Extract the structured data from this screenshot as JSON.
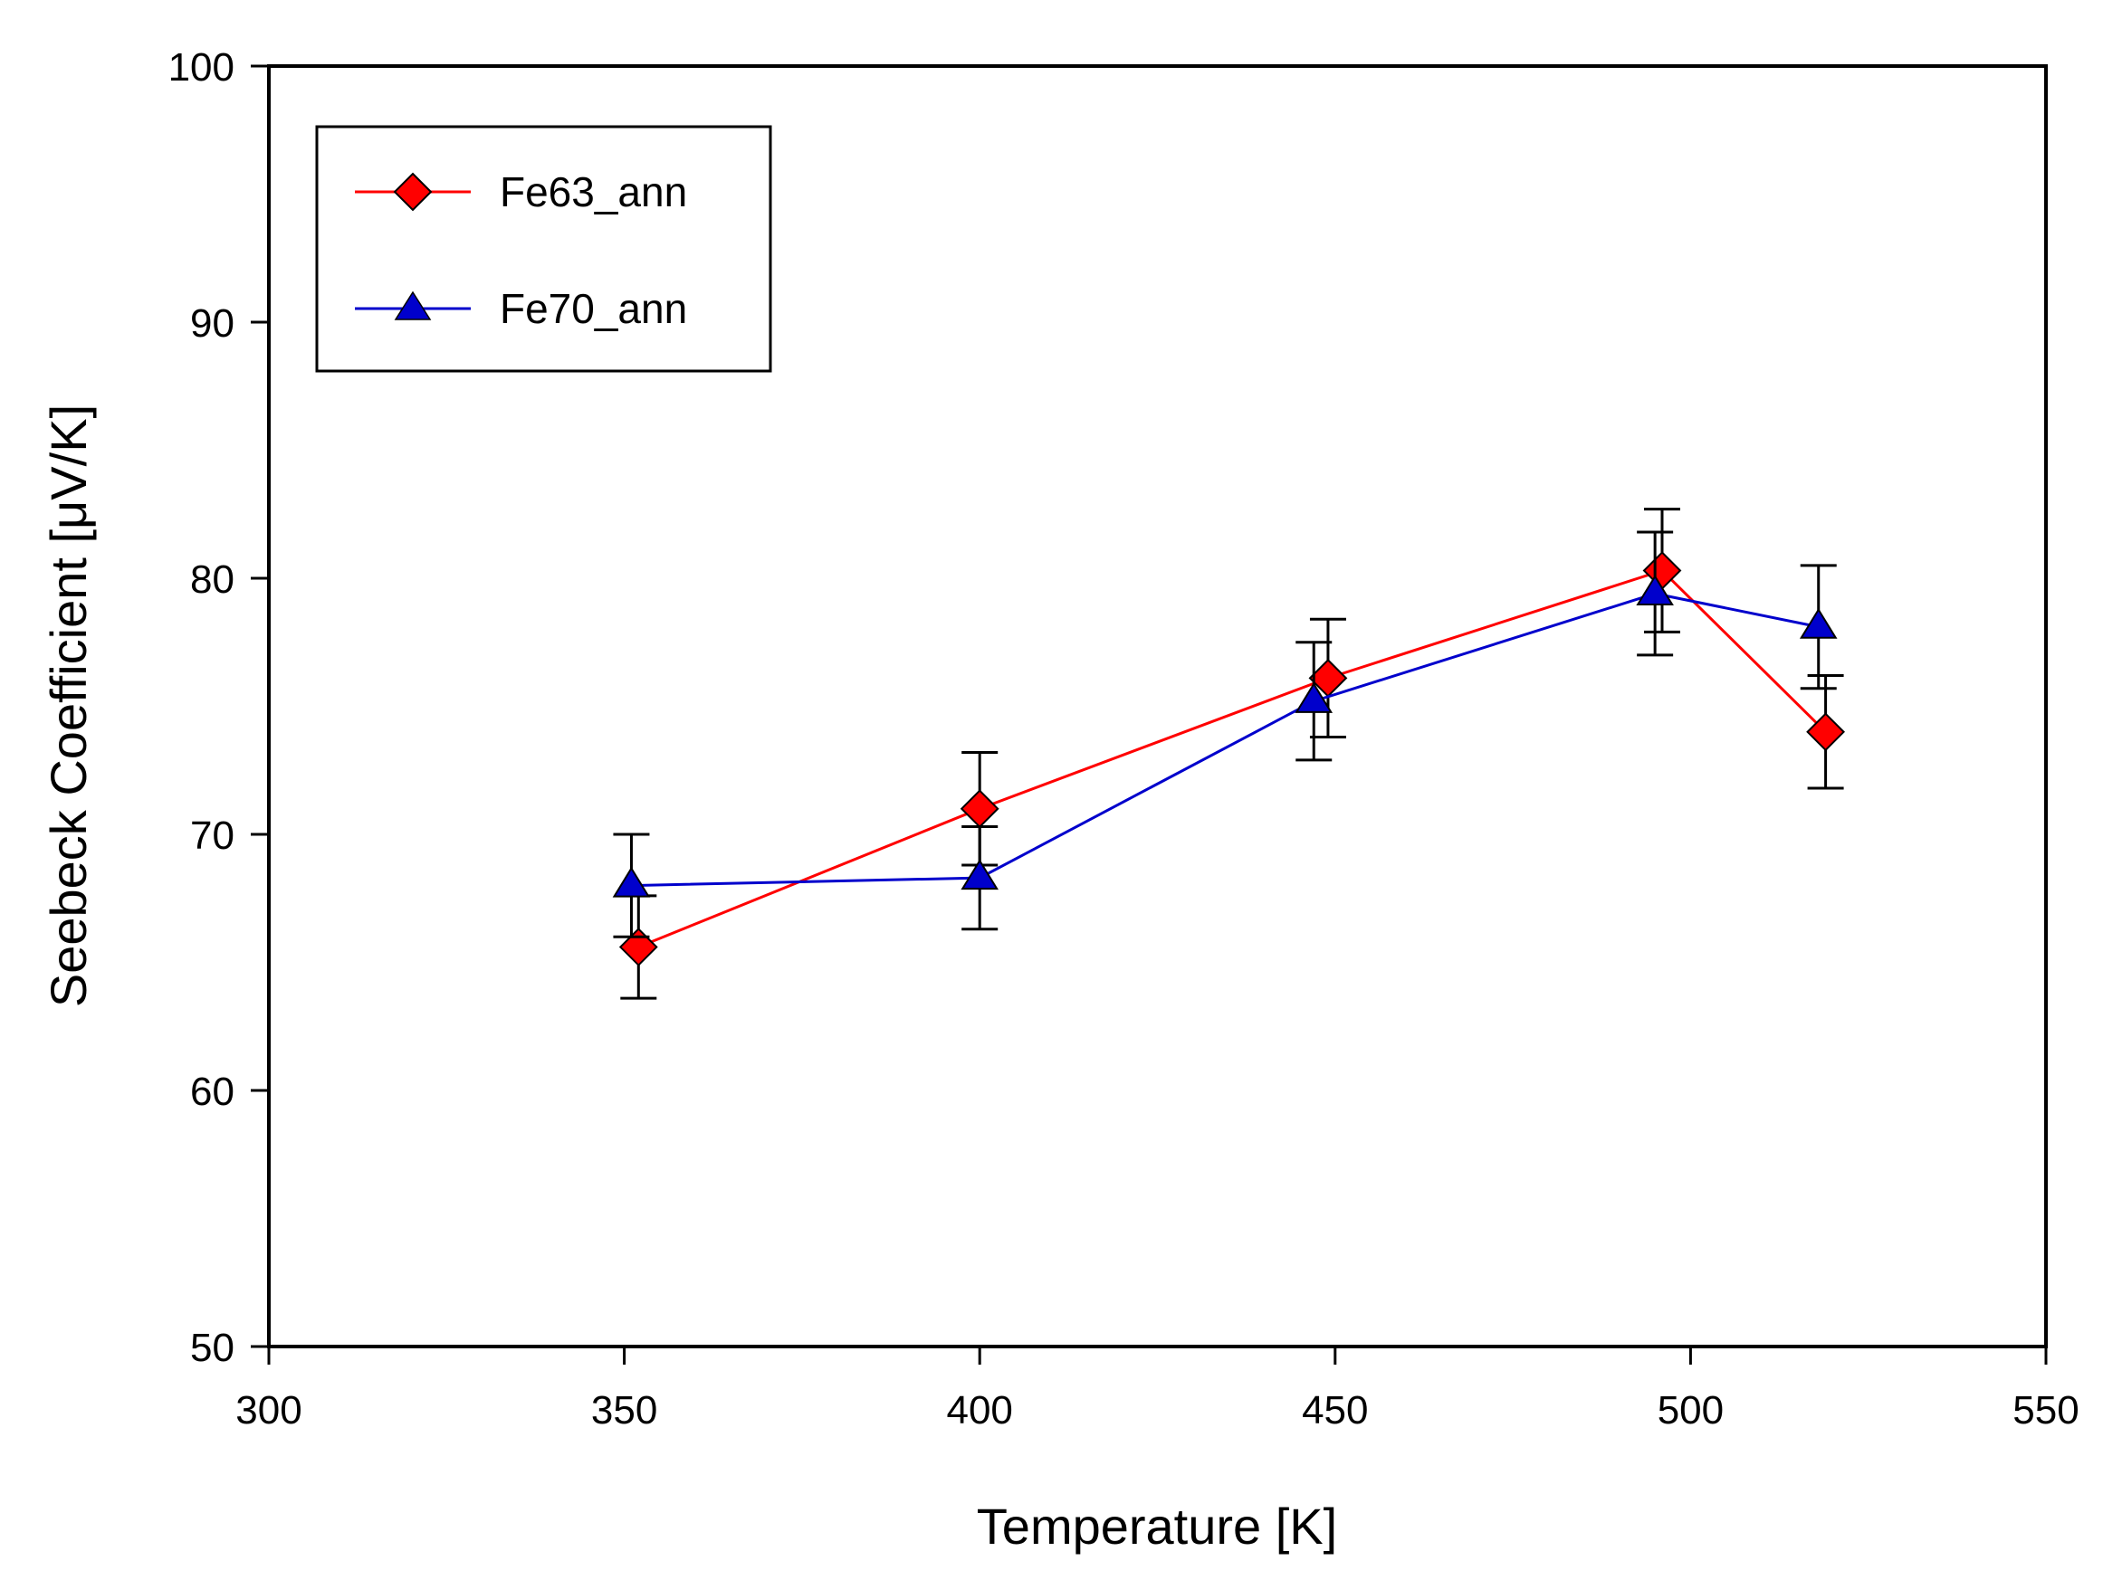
{
  "chart_data": {
    "type": "line",
    "title": "",
    "xlabel": "Temperature [K]",
    "ylabel": "Seebeck Coefficient [μV/K]",
    "xlim": [
      300,
      550
    ],
    "ylim": [
      50,
      100
    ],
    "xticks": [
      300,
      350,
      400,
      450,
      500,
      550
    ],
    "yticks": [
      50,
      60,
      70,
      80,
      90,
      100
    ],
    "xtick_labels": [
      "300",
      "350",
      "400",
      "450",
      "500",
      "550"
    ],
    "ytick_labels": [
      "50",
      "60",
      "70",
      "80",
      "90",
      "100"
    ],
    "grid": false,
    "legend_position": "top-left",
    "series": [
      {
        "name": "Fe63_ann",
        "color": "#ff0000",
        "marker": "diamond",
        "x": [
          352,
          400,
          449,
          496,
          519
        ],
        "y": [
          65.6,
          71.0,
          76.1,
          80.3,
          74.0
        ],
        "err": [
          2.0,
          2.2,
          2.3,
          2.4,
          2.2
        ]
      },
      {
        "name": "Fe70_ann",
        "color": "#0000cc",
        "marker": "triangle",
        "x": [
          351,
          400,
          447,
          495,
          518
        ],
        "y": [
          68.0,
          68.3,
          75.2,
          79.4,
          78.1
        ],
        "err": [
          2.0,
          2.0,
          2.3,
          2.4,
          2.4
        ]
      }
    ]
  }
}
